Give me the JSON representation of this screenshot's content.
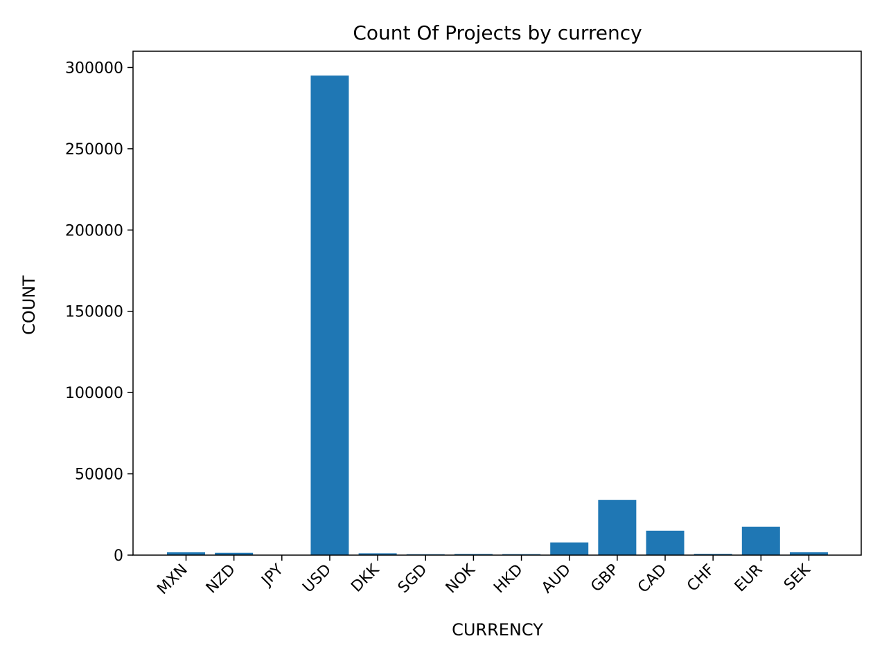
{
  "chart_data": {
    "type": "bar",
    "title": "Count Of Projects by currency",
    "xlabel": "CURRENCY",
    "ylabel": "COUNT",
    "categories": [
      "MXN",
      "NZD",
      "JPY",
      "USD",
      "DKK",
      "SGD",
      "NOK",
      "HKD",
      "AUD",
      "GBP",
      "CAD",
      "CHF",
      "EUR",
      "SEK"
    ],
    "values": [
      1700,
      1400,
      30,
      295000,
      1100,
      550,
      700,
      600,
      7800,
      34000,
      15000,
      750,
      17500,
      1750
    ],
    "ylim": [
      0,
      310000
    ],
    "yticks": [
      0,
      50000,
      100000,
      150000,
      200000,
      250000,
      300000
    ],
    "ytick_labels": [
      "0",
      "50000",
      "100000",
      "150000",
      "200000",
      "250000",
      "300000"
    ],
    "bar_color": "#1f77b4",
    "grid": false,
    "legend": "none"
  }
}
